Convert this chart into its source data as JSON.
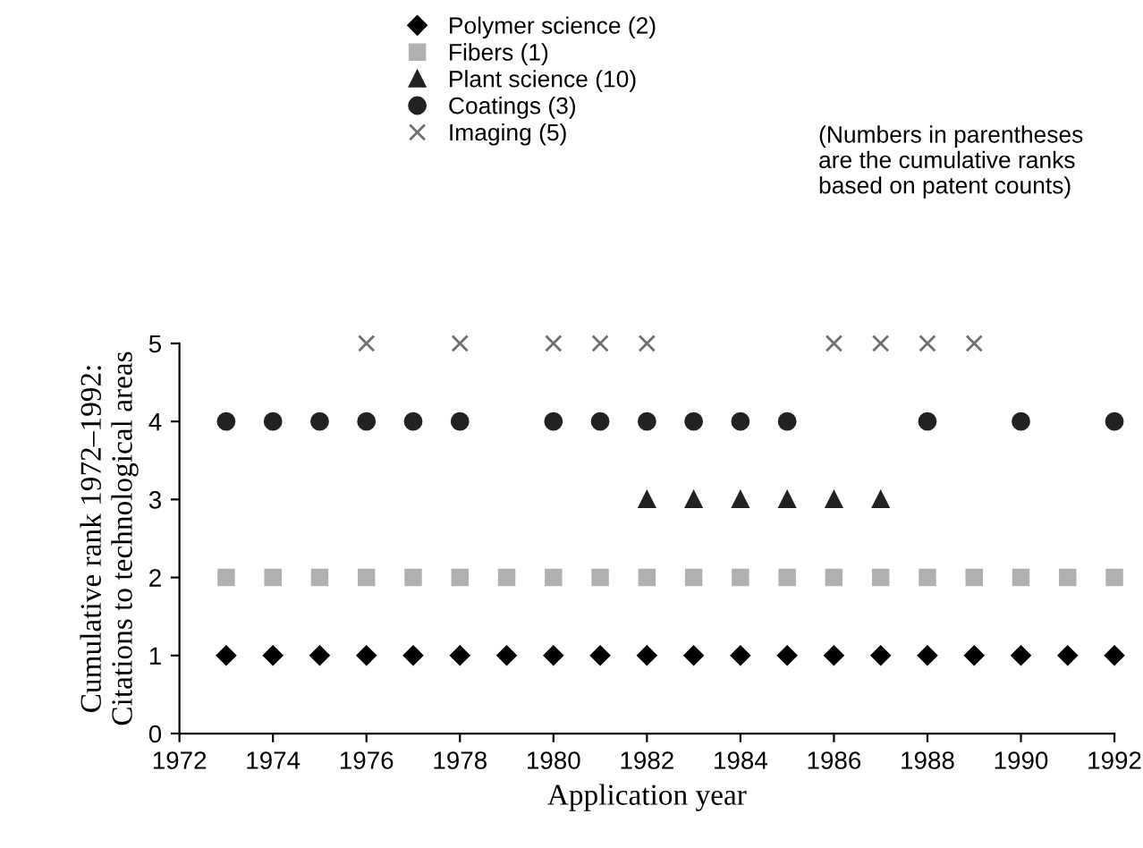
{
  "chart_data": {
    "type": "scatter",
    "xlabel": "Application year",
    "ylabel": "Cumulative rank 1972–1992:\nCitations to technological areas",
    "annotations": [
      "(Numbers in parentheses\nare the cumulative ranks\nbased on patent counts)"
    ],
    "xlim": [
      1972,
      1992
    ],
    "xticks": [
      1972,
      1974,
      1976,
      1978,
      1980,
      1982,
      1984,
      1986,
      1988,
      1990,
      1992
    ],
    "ylim": [
      0,
      5
    ],
    "yticks": [
      0,
      1,
      2,
      3,
      4,
      5
    ],
    "grid": false,
    "legend": "top",
    "series": [
      {
        "name": "Polymer science (2)",
        "color": "#000000",
        "marker": "diamond",
        "x": [
          1973,
          1974,
          1975,
          1976,
          1977,
          1978,
          1979,
          1980,
          1981,
          1982,
          1983,
          1984,
          1985,
          1986,
          1987,
          1988,
          1989,
          1990,
          1991,
          1992
        ],
        "values": [
          1,
          1,
          1,
          1,
          1,
          1,
          1,
          1,
          1,
          1,
          1,
          1,
          1,
          1,
          1,
          1,
          1,
          1,
          1,
          1
        ]
      },
      {
        "name": "Fibers (1)",
        "color": "#b0b0b0",
        "marker": "square",
        "x": [
          1973,
          1974,
          1975,
          1976,
          1977,
          1978,
          1979,
          1980,
          1981,
          1982,
          1983,
          1984,
          1985,
          1986,
          1987,
          1988,
          1989,
          1990,
          1991,
          1992
        ],
        "values": [
          2,
          2,
          2,
          2,
          2,
          2,
          2,
          2,
          2,
          2,
          2,
          2,
          2,
          2,
          2,
          2,
          2,
          2,
          2,
          2
        ]
      },
      {
        "name": "Plant science (10)",
        "color": "#222222",
        "marker": "triangle",
        "x": [
          1982,
          1983,
          1984,
          1985,
          1986,
          1987
        ],
        "values": [
          3,
          3,
          3,
          3,
          3,
          3
        ]
      },
      {
        "name": "Coatings (3)",
        "color": "#222222",
        "marker": "circle",
        "x": [
          1973,
          1974,
          1975,
          1976,
          1977,
          1978,
          1980,
          1981,
          1982,
          1983,
          1984,
          1985,
          1988,
          1990,
          1992
        ],
        "values": [
          4,
          4,
          4,
          4,
          4,
          4,
          4,
          4,
          4,
          4,
          4,
          4,
          4,
          4,
          4
        ]
      },
      {
        "name": "Imaging (5)",
        "color": "#707070",
        "marker": "cross",
        "x": [
          1976,
          1978,
          1980,
          1981,
          1982,
          1986,
          1987,
          1988,
          1989
        ],
        "values": [
          5,
          5,
          5,
          5,
          5,
          5,
          5,
          5,
          5
        ]
      }
    ]
  }
}
